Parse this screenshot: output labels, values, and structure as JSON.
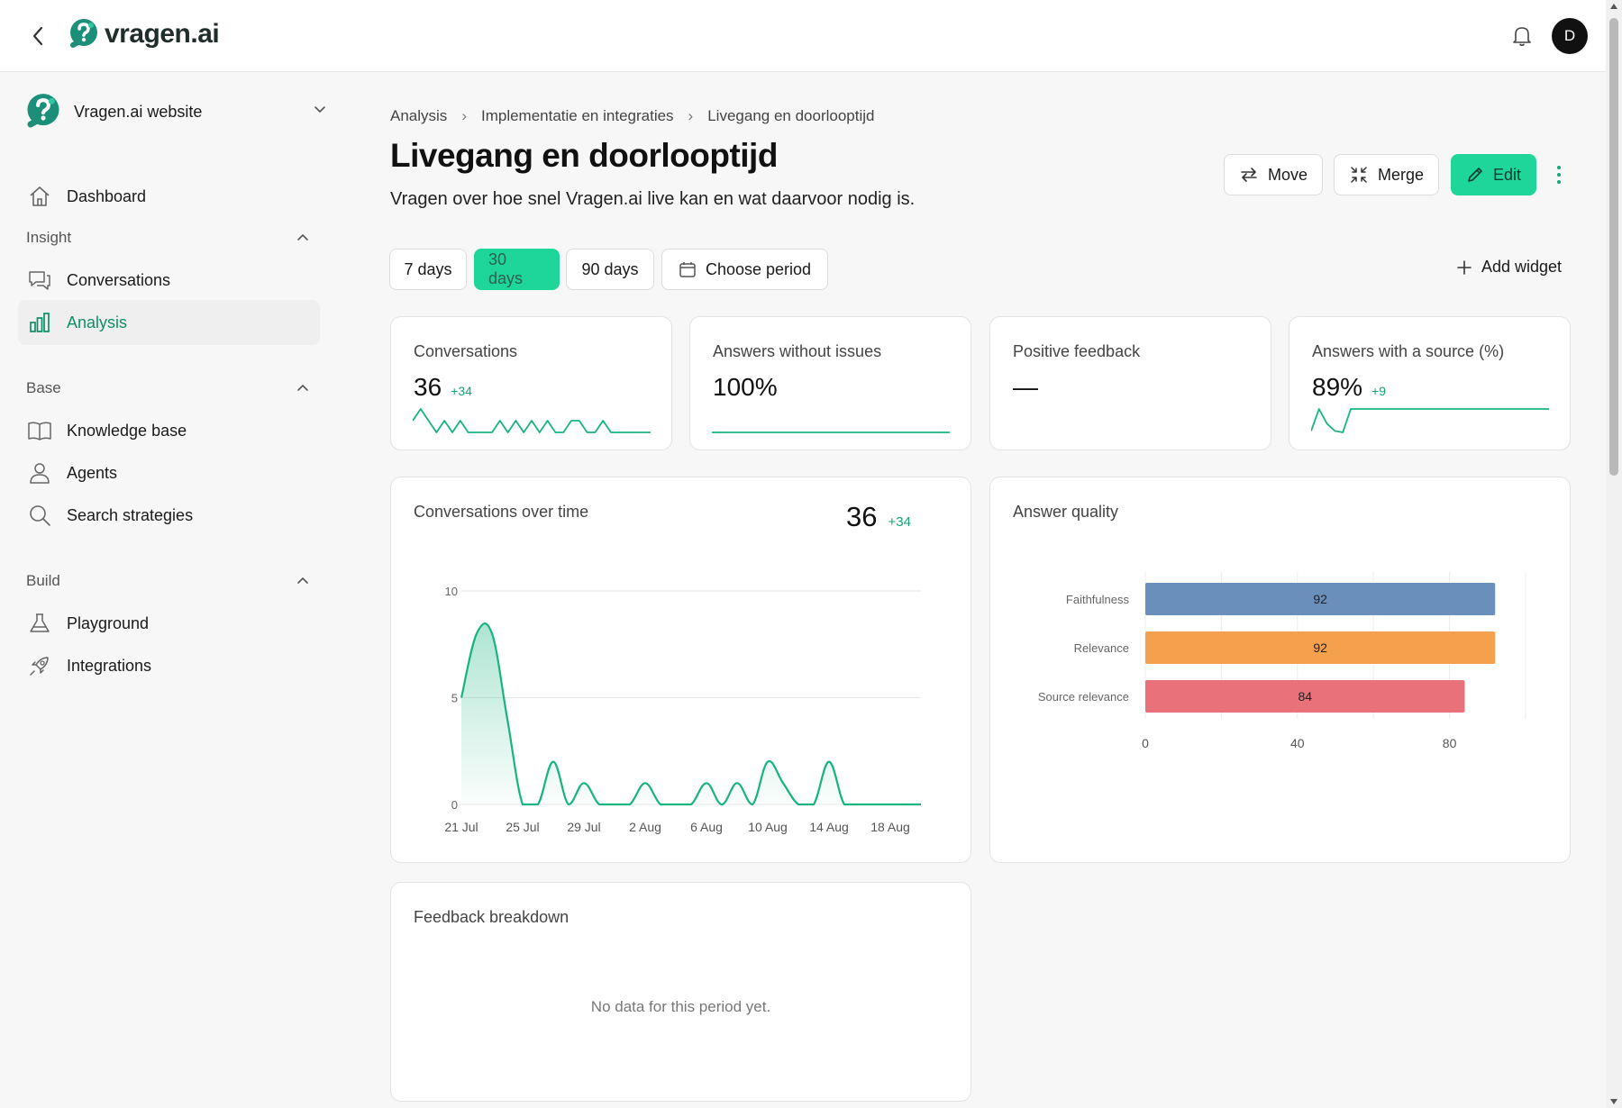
{
  "app": {
    "logo_text": "vragen.ai",
    "user_initial": "D"
  },
  "sidebar": {
    "workspace": "Vragen.ai website",
    "dashboard": "Dashboard",
    "sections": {
      "insight": {
        "title": "Insight",
        "items": [
          "Conversations",
          "Analysis"
        ]
      },
      "base": {
        "title": "Base",
        "items": [
          "Knowledge base",
          "Agents",
          "Search strategies"
        ]
      },
      "build": {
        "title": "Build",
        "items": [
          "Playground",
          "Integrations"
        ]
      }
    }
  },
  "breadcrumb": [
    "Analysis",
    "Implementatie en integraties",
    "Livegang en doorlooptijd"
  ],
  "page": {
    "title": "Livegang en doorlooptijd",
    "subtitle": "Vragen over hoe snel Vragen.ai live kan en wat daarvoor nodig is."
  },
  "actions": {
    "move": "Move",
    "merge": "Merge",
    "edit": "Edit"
  },
  "periods": {
    "p7": "7 days",
    "p30": "30 days",
    "p90": "90 days",
    "custom": "Choose period",
    "selected": "30 days"
  },
  "add_widget": "Add widget",
  "kpis": [
    {
      "title": "Conversations",
      "value": "36",
      "delta": "+34"
    },
    {
      "title": "Answers without issues",
      "value": "100%",
      "delta": ""
    },
    {
      "title": "Positive feedback",
      "value": "—",
      "delta": ""
    },
    {
      "title": "Answers with a source (%)",
      "value": "89%",
      "delta": "+9"
    }
  ],
  "conv_chart": {
    "title": "Conversations over time",
    "total": "36",
    "delta": "+34"
  },
  "quality_chart": {
    "title": "Answer quality"
  },
  "feedback": {
    "title": "Feedback breakdown",
    "empty": "No data for this period yet."
  },
  "chart_data": [
    {
      "type": "area",
      "title": "Conversations over time",
      "x": [
        "21 Jul",
        "22 Jul",
        "23 Jul",
        "24 Jul",
        "25 Jul",
        "26 Jul",
        "27 Jul",
        "28 Jul",
        "29 Jul",
        "30 Jul",
        "31 Jul",
        "1 Aug",
        "2 Aug",
        "3 Aug",
        "4 Aug",
        "5 Aug",
        "6 Aug",
        "7 Aug",
        "8 Aug",
        "9 Aug",
        "10 Aug",
        "11 Aug",
        "12 Aug",
        "13 Aug",
        "14 Aug",
        "15 Aug",
        "16 Aug",
        "17 Aug",
        "18 Aug",
        "19 Aug",
        "20 Aug"
      ],
      "values": [
        5,
        8,
        8,
        4,
        0,
        0,
        2,
        0,
        1,
        0,
        0,
        0,
        1,
        0,
        0,
        0,
        1,
        0,
        1,
        0,
        2,
        1,
        0,
        0,
        2,
        0,
        0,
        0,
        0,
        0,
        0
      ],
      "xticks": [
        "21 Jul",
        "25 Jul",
        "29 Jul",
        "2 Aug",
        "6 Aug",
        "10 Aug",
        "14 Aug",
        "18 Aug"
      ],
      "yticks": [
        0,
        5,
        10
      ],
      "ylim": [
        0,
        10
      ],
      "color": "#17b47e",
      "grid": true
    },
    {
      "type": "bar",
      "orientation": "horizontal",
      "title": "Answer quality",
      "categories": [
        "Faithfulness",
        "Relevance",
        "Source relevance"
      ],
      "values": [
        92,
        92,
        84
      ],
      "colors": [
        "#6b8fbb",
        "#f5a04d",
        "#e9717a"
      ],
      "xticks": [
        0,
        40,
        80
      ],
      "xlim": [
        0,
        100
      ]
    },
    {
      "type": "line",
      "title": "Conversations",
      "values": [
        1,
        2,
        1,
        0,
        1,
        0,
        1,
        0,
        0,
        0,
        0,
        1,
        0,
        1,
        0,
        1,
        0,
        1,
        0,
        0,
        1,
        1,
        0,
        0,
        1,
        0,
        0,
        0,
        0,
        0,
        0
      ],
      "color": "#17b47e"
    },
    {
      "type": "line",
      "title": "Answers without issues",
      "values": [
        100,
        100,
        100,
        100,
        100,
        100,
        100,
        100,
        100,
        100,
        100,
        100,
        100,
        100,
        100,
        100,
        100,
        100,
        100,
        100,
        100,
        100,
        100,
        100,
        100,
        100,
        100,
        100,
        100,
        100,
        100
      ],
      "color": "#17b47e"
    },
    {
      "type": "line",
      "title": "Answers with a source (%)",
      "values": [
        80,
        95,
        85,
        80,
        79,
        95,
        95,
        95,
        95,
        95,
        95,
        95,
        95,
        95,
        95,
        95,
        95,
        95,
        95,
        95,
        95,
        95,
        95,
        95,
        95,
        95,
        95,
        95,
        95,
        95,
        95
      ],
      "color": "#17b47e"
    }
  ]
}
